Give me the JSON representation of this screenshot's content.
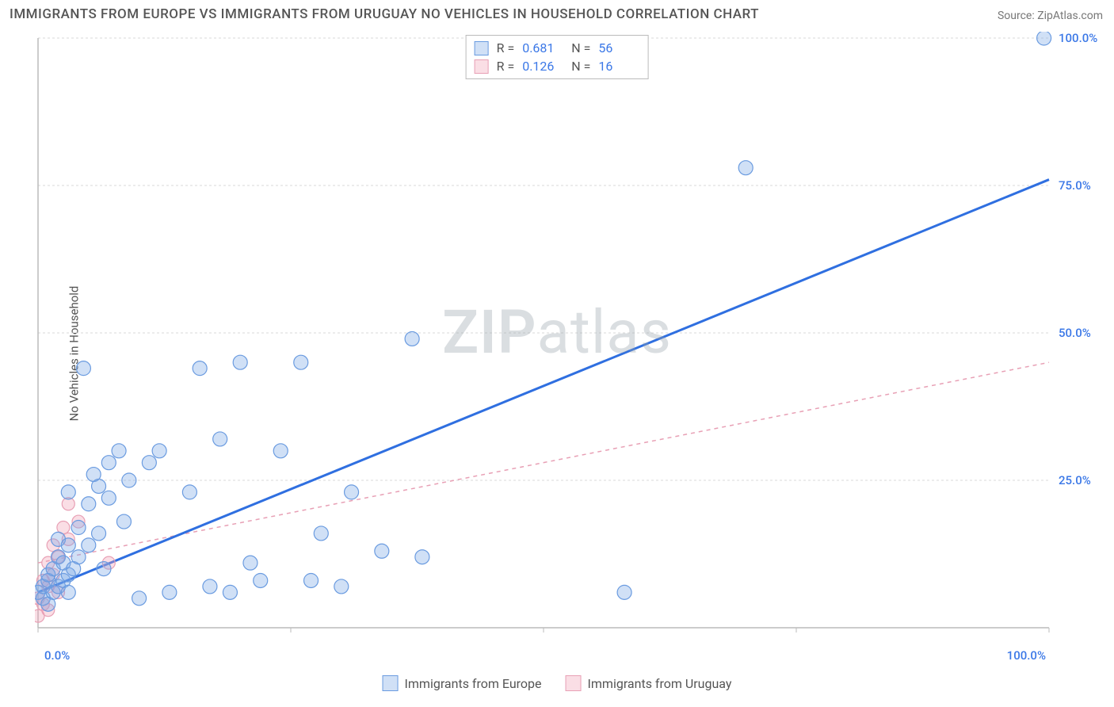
{
  "title": "IMMIGRANTS FROM EUROPE VS IMMIGRANTS FROM URUGUAY NO VEHICLES IN HOUSEHOLD CORRELATION CHART",
  "source": "Source: ZipAtlas.com",
  "ylabel": "No Vehicles in Household",
  "watermark": {
    "zip": "ZIP",
    "atlas": "atlas"
  },
  "chart": {
    "type": "scatter-with-regression",
    "xlim": [
      0,
      100
    ],
    "ylim": [
      0,
      100
    ],
    "x_ticks": [
      0,
      25,
      50,
      75,
      100
    ],
    "y_ticks": [
      0,
      25,
      50,
      75,
      100
    ],
    "x_tick_labels": [
      "0.0%",
      "",
      "",
      "",
      "100.0%"
    ],
    "y_tick_labels": [
      "",
      "25.0%",
      "50.0%",
      "75.0%",
      "100.0%"
    ],
    "grid_color": "#d9d9d9",
    "axis_color": "#bbbbbb",
    "axis_label_color": "#3b78e7",
    "background_color": "#ffffff",
    "point_radius": 9,
    "point_radius_small": 8,
    "series": [
      {
        "name": "Immigrants from Europe",
        "fill": "rgba(120,165,230,0.35)",
        "stroke": "#6a9be0",
        "reg_color": "#2f6fe0",
        "reg_width": 3,
        "reg_dash": "",
        "R": "0.681",
        "N": "56",
        "reg_line": {
          "x1": 0,
          "y1": 6,
          "x2": 100,
          "y2": 76
        },
        "points": [
          [
            0,
            6
          ],
          [
            0.5,
            5
          ],
          [
            0.5,
            7
          ],
          [
            1,
            4
          ],
          [
            1,
            8
          ],
          [
            1,
            9
          ],
          [
            1.5,
            6
          ],
          [
            1.5,
            10
          ],
          [
            2,
            7
          ],
          [
            2,
            12
          ],
          [
            2,
            15
          ],
          [
            2.5,
            8
          ],
          [
            2.5,
            11
          ],
          [
            3,
            6
          ],
          [
            3,
            9
          ],
          [
            3,
            14
          ],
          [
            3,
            23
          ],
          [
            3.5,
            10
          ],
          [
            4,
            12
          ],
          [
            4,
            17
          ],
          [
            4.5,
            44
          ],
          [
            5,
            21
          ],
          [
            5,
            14
          ],
          [
            5.5,
            26
          ],
          [
            6,
            24
          ],
          [
            6,
            16
          ],
          [
            6.5,
            10
          ],
          [
            7,
            28
          ],
          [
            7,
            22
          ],
          [
            8,
            30
          ],
          [
            8.5,
            18
          ],
          [
            9,
            25
          ],
          [
            10,
            5
          ],
          [
            11,
            28
          ],
          [
            12,
            30
          ],
          [
            13,
            6
          ],
          [
            15,
            23
          ],
          [
            16,
            44
          ],
          [
            17,
            7
          ],
          [
            18,
            32
          ],
          [
            19,
            6
          ],
          [
            20,
            45
          ],
          [
            21,
            11
          ],
          [
            22,
            8
          ],
          [
            24,
            30
          ],
          [
            26,
            45
          ],
          [
            27,
            8
          ],
          [
            28,
            16
          ],
          [
            30,
            7
          ],
          [
            31,
            23
          ],
          [
            34,
            13
          ],
          [
            37,
            49
          ],
          [
            38,
            12
          ],
          [
            58,
            6
          ],
          [
            70,
            78
          ],
          [
            99.5,
            100
          ]
        ]
      },
      {
        "name": "Immigrants from Uruguay",
        "fill": "rgba(240,160,180,0.35)",
        "stroke": "#e8a0b5",
        "reg_color": "#e8a0b5",
        "reg_width": 1.5,
        "reg_dash": "5 5",
        "R": "0.126",
        "N": "16",
        "reg_line": {
          "x1": 0,
          "y1": 11,
          "x2": 100,
          "y2": 45
        },
        "points": [
          [
            0,
            2
          ],
          [
            0,
            5
          ],
          [
            0.5,
            4
          ],
          [
            0.5,
            8
          ],
          [
            1,
            3
          ],
          [
            1,
            7
          ],
          [
            1,
            11
          ],
          [
            1.5,
            9
          ],
          [
            1.5,
            14
          ],
          [
            2,
            6
          ],
          [
            2,
            12
          ],
          [
            2.5,
            17
          ],
          [
            3,
            21
          ],
          [
            3,
            15
          ],
          [
            4,
            18
          ],
          [
            7,
            11
          ]
        ]
      }
    ]
  },
  "legend": {
    "series1_label": "Immigrants from Europe",
    "series2_label": "Immigrants from Uruguay"
  },
  "stats": {
    "r_label": "R =",
    "n_label": "N ="
  }
}
